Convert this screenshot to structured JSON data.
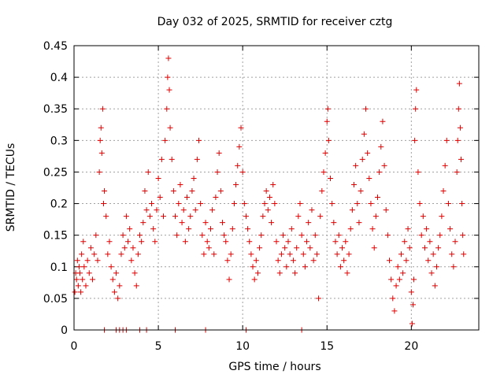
{
  "chart_data": {
    "type": "scatter",
    "title": "Day 032 of 2025, SRMTID for receiver cztg",
    "xlabel": "GPS time / hours",
    "ylabel": "SRMTID / TECUs",
    "xlim": [
      0,
      24
    ],
    "ylim": [
      0,
      0.45
    ],
    "x_ticks": [
      0,
      5,
      10,
      15,
      20
    ],
    "x_tick_labels": [
      "0",
      "5",
      "10",
      "15",
      "20"
    ],
    "y_ticks": [
      0,
      0.05,
      0.1,
      0.15,
      0.2,
      0.25,
      0.3,
      0.35,
      0.4,
      0.45
    ],
    "y_tick_labels": [
      "0",
      "0.05",
      "0.1",
      "0.15",
      "0.2",
      "0.25",
      "0.3",
      "0.35",
      "0.4",
      "0.45"
    ],
    "grid": true,
    "marker": "+",
    "color": "#e00000",
    "series": [
      {
        "name": "SRMTID",
        "points": [
          [
            0.05,
            0.06
          ],
          [
            0.1,
            0.09
          ],
          [
            0.15,
            0.08
          ],
          [
            0.2,
            0.11
          ],
          [
            0.25,
            0.07
          ],
          [
            0.3,
            0.1
          ],
          [
            0.35,
            0.09
          ],
          [
            0.4,
            0.06
          ],
          [
            0.45,
            0.12
          ],
          [
            0.5,
            0.08
          ],
          [
            0.55,
            0.14
          ],
          [
            0.6,
            0.1
          ],
          [
            0.7,
            0.07
          ],
          [
            0.8,
            0.11
          ],
          [
            0.9,
            0.09
          ],
          [
            1.0,
            0.13
          ],
          [
            1.1,
            0.08
          ],
          [
            1.2,
            0.12
          ],
          [
            1.3,
            0.15
          ],
          [
            1.4,
            0.11
          ],
          [
            1.5,
            0.25
          ],
          [
            1.55,
            0.3
          ],
          [
            1.6,
            0.32
          ],
          [
            1.65,
            0.28
          ],
          [
            1.7,
            0.35
          ],
          [
            1.75,
            0.2
          ],
          [
            1.8,
            0.22
          ],
          [
            1.9,
            0.18
          ],
          [
            2.0,
            0.12
          ],
          [
            2.1,
            0.14
          ],
          [
            2.2,
            0.1
          ],
          [
            2.3,
            0.08
          ],
          [
            2.4,
            0.06
          ],
          [
            2.5,
            0.09
          ],
          [
            2.6,
            0.05
          ],
          [
            2.7,
            0.07
          ],
          [
            2.8,
            0.12
          ],
          [
            2.9,
            0.15
          ],
          [
            3.0,
            0.13
          ],
          [
            3.1,
            0.18
          ],
          [
            3.2,
            0.14
          ],
          [
            3.3,
            0.16
          ],
          [
            3.4,
            0.11
          ],
          [
            3.5,
            0.13
          ],
          [
            3.6,
            0.09
          ],
          [
            3.7,
            0.07
          ],
          [
            3.8,
            0.12
          ],
          [
            3.9,
            0.15
          ],
          [
            4.0,
            0.14
          ],
          [
            4.1,
            0.17
          ],
          [
            4.2,
            0.22
          ],
          [
            4.3,
            0.19
          ],
          [
            4.4,
            0.25
          ],
          [
            4.5,
            0.18
          ],
          [
            4.6,
            0.2
          ],
          [
            4.7,
            0.16
          ],
          [
            4.8,
            0.14
          ],
          [
            4.9,
            0.19
          ],
          [
            5.0,
            0.24
          ],
          [
            5.1,
            0.21
          ],
          [
            5.2,
            0.27
          ],
          [
            5.3,
            0.18
          ],
          [
            5.4,
            0.3
          ],
          [
            5.5,
            0.35
          ],
          [
            5.55,
            0.4
          ],
          [
            5.6,
            0.43
          ],
          [
            5.65,
            0.38
          ],
          [
            5.7,
            0.32
          ],
          [
            5.8,
            0.27
          ],
          [
            5.9,
            0.22
          ],
          [
            6.0,
            0.18
          ],
          [
            6.1,
            0.15
          ],
          [
            6.2,
            0.2
          ],
          [
            6.3,
            0.23
          ],
          [
            6.4,
            0.17
          ],
          [
            6.5,
            0.19
          ],
          [
            6.6,
            0.14
          ],
          [
            6.7,
            0.21
          ],
          [
            6.8,
            0.16
          ],
          [
            6.9,
            0.18
          ],
          [
            7.0,
            0.22
          ],
          [
            7.1,
            0.24
          ],
          [
            7.2,
            0.19
          ],
          [
            7.3,
            0.27
          ],
          [
            7.4,
            0.3
          ],
          [
            7.5,
            0.2
          ],
          [
            7.6,
            0.15
          ],
          [
            7.7,
            0.12
          ],
          [
            7.8,
            0.17
          ],
          [
            7.9,
            0.14
          ],
          [
            8.0,
            0.13
          ],
          [
            8.1,
            0.16
          ],
          [
            8.2,
            0.19
          ],
          [
            8.3,
            0.12
          ],
          [
            8.4,
            0.21
          ],
          [
            8.5,
            0.25
          ],
          [
            8.6,
            0.28
          ],
          [
            8.7,
            0.22
          ],
          [
            8.8,
            0.17
          ],
          [
            8.9,
            0.15
          ],
          [
            9.0,
            0.14
          ],
          [
            9.1,
            0.11
          ],
          [
            9.2,
            0.08
          ],
          [
            9.3,
            0.12
          ],
          [
            9.4,
            0.16
          ],
          [
            9.5,
            0.2
          ],
          [
            9.6,
            0.23
          ],
          [
            9.7,
            0.26
          ],
          [
            9.8,
            0.29
          ],
          [
            9.9,
            0.32
          ],
          [
            10.0,
            0.25
          ],
          [
            10.1,
            0.2
          ],
          [
            10.2,
            0.18
          ],
          [
            10.3,
            0.16
          ],
          [
            10.4,
            0.14
          ],
          [
            10.5,
            0.12
          ],
          [
            10.6,
            0.1
          ],
          [
            10.7,
            0.08
          ],
          [
            10.8,
            0.11
          ],
          [
            10.9,
            0.09
          ],
          [
            11.0,
            0.13
          ],
          [
            11.1,
            0.15
          ],
          [
            11.2,
            0.18
          ],
          [
            11.3,
            0.2
          ],
          [
            11.4,
            0.22
          ],
          [
            11.5,
            0.19
          ],
          [
            11.6,
            0.21
          ],
          [
            11.7,
            0.17
          ],
          [
            11.8,
            0.23
          ],
          [
            11.9,
            0.2
          ],
          [
            12.0,
            0.14
          ],
          [
            12.1,
            0.11
          ],
          [
            12.2,
            0.09
          ],
          [
            12.3,
            0.12
          ],
          [
            12.4,
            0.15
          ],
          [
            12.5,
            0.13
          ],
          [
            12.6,
            0.1
          ],
          [
            12.7,
            0.14
          ],
          [
            12.8,
            0.12
          ],
          [
            12.9,
            0.16
          ],
          [
            13.0,
            0.11
          ],
          [
            13.1,
            0.09
          ],
          [
            13.2,
            0.13
          ],
          [
            13.3,
            0.18
          ],
          [
            13.4,
            0.2
          ],
          [
            13.5,
            0.15
          ],
          [
            13.6,
            0.12
          ],
          [
            13.7,
            0.1
          ],
          [
            13.8,
            0.14
          ],
          [
            13.9,
            0.17
          ],
          [
            14.0,
            0.13
          ],
          [
            14.1,
            0.19
          ],
          [
            14.2,
            0.11
          ],
          [
            14.3,
            0.15
          ],
          [
            14.4,
            0.12
          ],
          [
            14.5,
            0.05
          ],
          [
            14.6,
            0.18
          ],
          [
            14.7,
            0.22
          ],
          [
            14.8,
            0.25
          ],
          [
            14.9,
            0.28
          ],
          [
            15.0,
            0.33
          ],
          [
            15.05,
            0.35
          ],
          [
            15.1,
            0.3
          ],
          [
            15.2,
            0.24
          ],
          [
            15.3,
            0.2
          ],
          [
            15.4,
            0.17
          ],
          [
            15.5,
            0.14
          ],
          [
            15.6,
            0.12
          ],
          [
            15.7,
            0.15
          ],
          [
            15.8,
            0.1
          ],
          [
            15.9,
            0.13
          ],
          [
            16.0,
            0.11
          ],
          [
            16.1,
            0.14
          ],
          [
            16.2,
            0.09
          ],
          [
            16.3,
            0.12
          ],
          [
            16.4,
            0.16
          ],
          [
            16.5,
            0.19
          ],
          [
            16.6,
            0.23
          ],
          [
            16.7,
            0.26
          ],
          [
            16.8,
            0.2
          ],
          [
            16.9,
            0.17
          ],
          [
            17.0,
            0.22
          ],
          [
            17.1,
            0.27
          ],
          [
            17.2,
            0.31
          ],
          [
            17.3,
            0.35
          ],
          [
            17.4,
            0.28
          ],
          [
            17.5,
            0.24
          ],
          [
            17.6,
            0.2
          ],
          [
            17.7,
            0.16
          ],
          [
            17.8,
            0.13
          ],
          [
            17.9,
            0.18
          ],
          [
            18.0,
            0.21
          ],
          [
            18.1,
            0.25
          ],
          [
            18.2,
            0.29
          ],
          [
            18.3,
            0.33
          ],
          [
            18.4,
            0.26
          ],
          [
            18.5,
            0.19
          ],
          [
            18.6,
            0.15
          ],
          [
            18.7,
            0.11
          ],
          [
            18.8,
            0.08
          ],
          [
            18.9,
            0.05
          ],
          [
            19.0,
            0.03
          ],
          [
            19.1,
            0.07
          ],
          [
            19.2,
            0.1
          ],
          [
            19.3,
            0.08
          ],
          [
            19.4,
            0.12
          ],
          [
            19.5,
            0.09
          ],
          [
            19.6,
            0.14
          ],
          [
            19.7,
            0.11
          ],
          [
            19.8,
            0.16
          ],
          [
            19.9,
            0.13
          ],
          [
            20.0,
            0.06
          ],
          [
            20.05,
            0.01
          ],
          [
            20.1,
            0.04
          ],
          [
            20.15,
            0.08
          ],
          [
            20.2,
            0.3
          ],
          [
            20.25,
            0.35
          ],
          [
            20.3,
            0.38
          ],
          [
            20.4,
            0.25
          ],
          [
            20.5,
            0.2
          ],
          [
            20.6,
            0.15
          ],
          [
            20.7,
            0.18
          ],
          [
            20.8,
            0.13
          ],
          [
            20.9,
            0.16
          ],
          [
            21.0,
            0.11
          ],
          [
            21.1,
            0.14
          ],
          [
            21.2,
            0.09
          ],
          [
            21.3,
            0.12
          ],
          [
            21.4,
            0.07
          ],
          [
            21.5,
            0.1
          ],
          [
            21.6,
            0.13
          ],
          [
            21.7,
            0.15
          ],
          [
            21.8,
            0.18
          ],
          [
            21.9,
            0.22
          ],
          [
            22.0,
            0.26
          ],
          [
            22.1,
            0.3
          ],
          [
            22.2,
            0.2
          ],
          [
            22.3,
            0.16
          ],
          [
            22.4,
            0.12
          ],
          [
            22.5,
            0.1
          ],
          [
            22.6,
            0.14
          ],
          [
            22.7,
            0.25
          ],
          [
            22.75,
            0.3
          ],
          [
            22.8,
            0.35
          ],
          [
            22.85,
            0.39
          ],
          [
            22.9,
            0.32
          ],
          [
            22.95,
            0.27
          ],
          [
            23.0,
            0.2
          ],
          [
            23.05,
            0.15
          ],
          [
            23.1,
            0.12
          ],
          [
            1.8,
            0.0
          ],
          [
            2.5,
            0.0
          ],
          [
            2.7,
            0.0
          ],
          [
            2.9,
            0.0
          ],
          [
            3.1,
            0.0
          ],
          [
            3.9,
            0.0
          ],
          [
            4.3,
            0.0
          ],
          [
            6.0,
            0.0
          ],
          [
            7.8,
            0.0
          ],
          [
            10.2,
            0.0
          ],
          [
            13.5,
            0.0
          ]
        ]
      }
    ]
  }
}
